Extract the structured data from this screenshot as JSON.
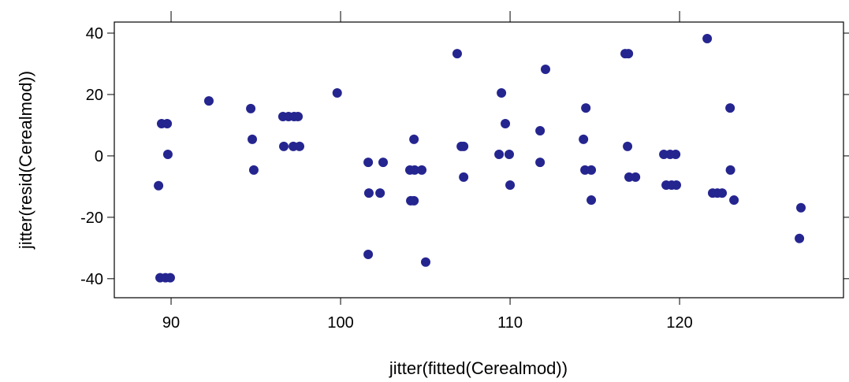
{
  "chart_data": {
    "type": "scatter",
    "x_label": "jitter(fitted(Cerealmod))",
    "y_label": "jitter(resid(Cerealmod))",
    "color": "#252590",
    "xlim": [
      86.65,
      129.67
    ],
    "ylim": [
      -46.2,
      43.6
    ],
    "xticks": [
      90,
      100,
      110,
      120
    ],
    "yticks": [
      -40,
      -20,
      0,
      20,
      40
    ],
    "x": [
      89.26,
      89.44,
      89.77,
      89.81,
      89.35,
      89.67,
      89.95,
      92.23,
      94.7,
      94.79,
      94.88,
      96.6,
      96.93,
      97.26,
      97.49,
      96.65,
      97.21,
      97.58,
      99.8,
      101.63,
      101.67,
      102.33,
      102.51,
      101.63,
      104.09,
      104.37,
      104.79,
      104.14,
      104.33,
      104.33,
      105.02,
      106.88,
      107.12,
      107.26,
      107.26,
      109.49,
      109.72,
      109.35,
      109.95,
      110.0,
      112.09,
      111.77,
      111.77,
      114.33,
      114.42,
      114.79,
      114.47,
      114.79,
      116.79,
      116.98,
      116.93,
      117.02,
      117.4,
      119.07,
      119.44,
      119.77,
      119.21,
      119.53,
      119.81,
      121.63,
      121.95,
      122.23,
      122.51,
      122.98,
      123.0,
      123.21,
      127.07,
      127.16
    ],
    "values": [
      -9.7,
      10.5,
      10.5,
      0.5,
      -39.7,
      -39.7,
      -39.7,
      17.9,
      15.4,
      5.4,
      -4.6,
      12.8,
      12.8,
      12.8,
      12.8,
      3.1,
      3.1,
      3.1,
      20.5,
      -2.1,
      -12.1,
      -12.1,
      -2.1,
      -32.1,
      -4.6,
      -4.6,
      -4.6,
      -14.6,
      -14.6,
      5.4,
      -34.6,
      33.3,
      3.1,
      3.1,
      -6.9,
      20.5,
      10.5,
      0.5,
      0.5,
      -9.5,
      28.2,
      8.2,
      -2.1,
      5.4,
      -4.6,
      -4.6,
      15.6,
      -14.4,
      33.3,
      33.3,
      3.1,
      -6.9,
      -6.9,
      0.5,
      0.5,
      0.5,
      -9.5,
      -9.5,
      -9.5,
      38.2,
      -12.1,
      -12.1,
      -12.1,
      15.6,
      -4.6,
      -14.4,
      -26.9,
      -16.9
    ]
  }
}
